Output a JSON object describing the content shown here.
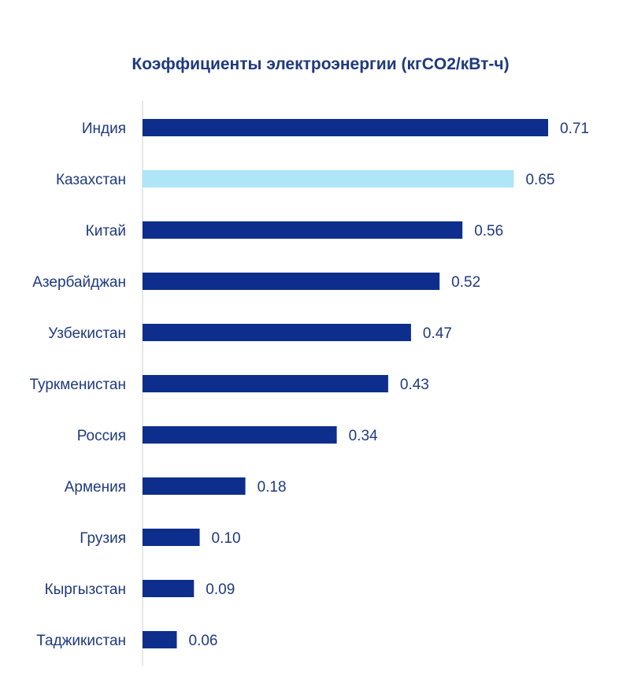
{
  "colors": {
    "text": "#1f3a7d",
    "title": "#1f3a7d",
    "bar": "#0d2e8c",
    "highlight": "#aee6f7",
    "axis": "#e7e7e7"
  },
  "chart_data": {
    "type": "bar",
    "orientation": "horizontal",
    "title": "Коэффициенты электроэнергии (кгCO2/кВт-ч)",
    "xlabel": "",
    "ylabel": "",
    "xlim": [
      0,
      0.71
    ],
    "grid": false,
    "legend": "none",
    "highlight_category": "Казахстан",
    "categories": [
      "Индия",
      "Казахстан",
      "Китай",
      "Азербайджан",
      "Узбекистан",
      "Туркменистан",
      "Россия",
      "Армения",
      "Грузия",
      "Кыргызстан",
      "Таджикистан"
    ],
    "values": [
      0.71,
      0.65,
      0.56,
      0.52,
      0.47,
      0.43,
      0.34,
      0.18,
      0.1,
      0.09,
      0.06
    ],
    "value_labels": [
      "0.71",
      "0.65",
      "0.56",
      "0.52",
      "0.47",
      "0.43",
      "0.34",
      "0.18",
      "0.10",
      "0.09",
      "0.06"
    ]
  }
}
